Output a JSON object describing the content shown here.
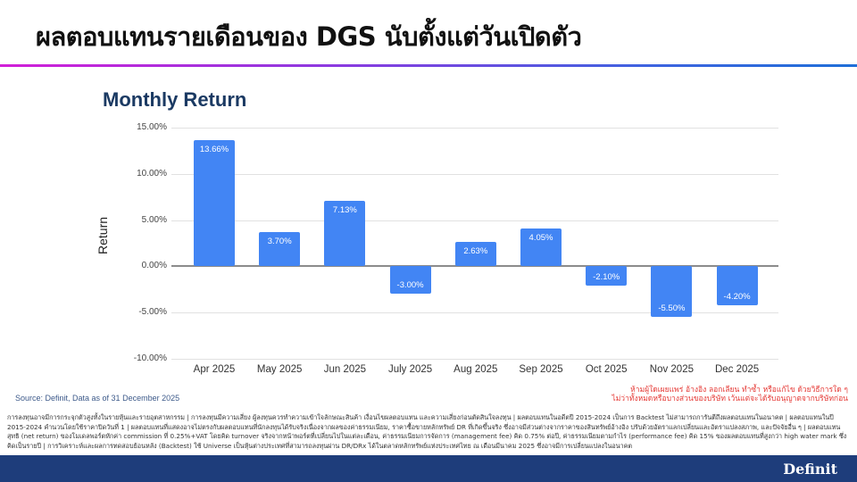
{
  "page": {
    "title": "ผลตอบแทนรายเดือนของ DGS นับตั้งแต่วันเปิดตัว",
    "gradient_colors": [
      "#d21fd8",
      "#1f6fd8"
    ]
  },
  "chart_data": {
    "type": "bar",
    "title": "Monthly Return",
    "xlabel": "",
    "ylabel": "Return",
    "ylim": [
      -10,
      15
    ],
    "yticks": [
      "15.00%",
      "10.00%",
      "5.00%",
      "0.00%",
      "-5.00%",
      "-10.00%"
    ],
    "ytick_values": [
      15,
      10,
      5,
      0,
      -5,
      -10
    ],
    "grid": true,
    "legend": "none",
    "bar_color": "#4285f4",
    "categories": [
      "Apr 2025",
      "May 2025",
      "Jun 2025",
      "July 2025",
      "Aug 2025",
      "Sep 2025",
      "Oct 2025",
      "Nov 2025",
      "Dec 2025"
    ],
    "values": [
      13.66,
      3.7,
      7.13,
      -3.0,
      2.63,
      4.05,
      -2.1,
      -5.5,
      -4.2
    ],
    "data_labels": [
      "13.66%",
      "3.70%",
      "7.13%",
      "-3.00%",
      "2.63%",
      "4.05%",
      "-2.10%",
      "-5.50%",
      "-4.20%"
    ]
  },
  "source": "Source: Definit, Data as of 31 December 2025",
  "warning": {
    "line1": "ห้ามผู้ใดเผยแพร่ อ้างอิง ลอกเลียน ทำซ้ำ หรือแก้ไข ด้วยวิธีการใด ๆ",
    "line2": "ไม่ว่าทั้งหมดหรือบางส่วนของบริษัท เว้นแต่จะได้รับอนุญาตจากบริษัทก่อน",
    "color": "#e53935"
  },
  "disclaimer": "การลงทุนอาจมีการกระจุกตัวสูงทั้งในรายหุ้นและรายอุตสาหกรรม | การลงทุนมีความเสี่ยง ผู้ลงทุนควรทำความเข้าใจลักษณะสินค้า เงื่อนไขผลตอบแทน และความเสี่ยงก่อนตัดสินใจลงทุน | ผลตอบแทนในอดีตปี 2015-2024 เป็นการ Backtest ไม่สามารถการันตีถึงผลตอบแทนในอนาคต | ผลตอบแทนในปี 2015-2024 คำนวนโดยใช้ราคาปิดวันที่ 1 | ผลตอบแทนที่แสดงอาจไม่ตรงกับผลตอบแทนที่นักลงทุนได้รับจริงเนื่องจากผลของค่าธรรมเนียม, ราคาซื้อขายหลักทรัพย์ DR ที่เกิดขึ้นจริง ซึ่งอาจมีส่วนต่างจากราคาของสินทรัพย์อ้างอิง ปรับด้วยอัตราแลกเปลี่ยนและอัตราแปลงสภาพ, และปัจจัยอื่น ๆ | ผลตอบแทนสุทธิ (net return) ของโมเดลพอร์ตหักค่า commission ที่ 0.25%+VAT โดยคิด turnover จริงจากหน้าพอร์ตที่เปลี่ยนไปในแต่ละเดือน, ค่าธรรมเนียมการจัดการ (management fee) คิด 0.75% ต่อปี, ค่าธรรมเนียมตามกำไร (performance fee) คิด 15% ของผลตอบแทนที่สูงกว่า high water mark ซึ่งคิดเป็นรายปี | การวิเคราะห์และผลการทดสอบย้อนหลัง (Backtest) ใช้ Universe เป็นหุ้นต่างประเทศที่สามารถลงทุนผ่าน DR/DRx ได้ในตลาดหลักทรัพย์แห่งประเทศไทย ณ เดือนมีนาคม 2025 ซึ่งอาจมีการเปลี่ยนแปลงในอนาคต",
  "footer": {
    "logo": "Definit",
    "bg_color": "#1e3d7b"
  }
}
